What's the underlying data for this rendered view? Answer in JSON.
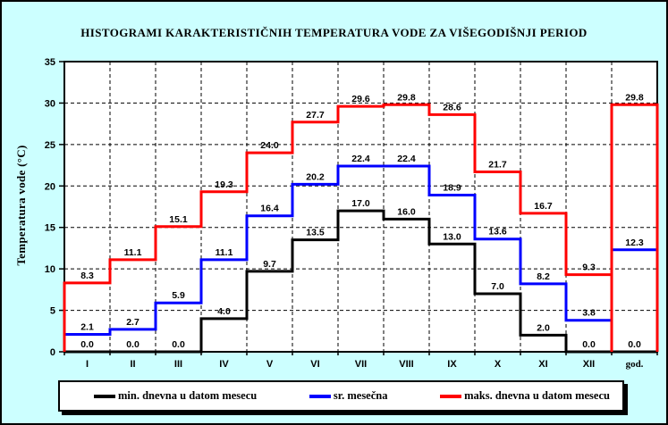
{
  "title": "HISTOGRAMI KARAKTERISTIČNIH TEMPERATURA VODE ZA VIŠEGODIŠNJI PERIOD",
  "colors": {
    "background": "#CCFFFF",
    "plot_background": "#FFFFFF",
    "frame": "#000000",
    "min_series": "#000000",
    "mean_series": "#0000FF",
    "max_series": "#FF0000"
  },
  "chart_data": {
    "type": "line",
    "subtype": "step-histogram",
    "title": "HISTOGRAMI KARAKTERISTIČNIH TEMPERATURA VODE ZA VIŠEGODIŠNJI PERIOD",
    "xlabel": "",
    "ylabel": "Temperatura vode (°C)",
    "categories": [
      "I",
      "II",
      "III",
      "IV",
      "V",
      "VI",
      "VII",
      "VIII",
      "IX",
      "X",
      "XI",
      "XII",
      "god."
    ],
    "series": [
      {
        "name": "min. dnevna u datom mesecu",
        "color": "#000000",
        "values": [
          0.0,
          0.0,
          0.0,
          4.0,
          9.7,
          13.5,
          17.0,
          16.0,
          13.0,
          7.0,
          2.0,
          0.0,
          0.0
        ]
      },
      {
        "name": "sr. mesečna",
        "color": "#0000FF",
        "values": [
          2.1,
          2.7,
          5.9,
          11.1,
          16.4,
          20.2,
          22.4,
          22.4,
          18.9,
          13.6,
          8.2,
          3.8,
          12.3
        ]
      },
      {
        "name": "maks. dnevna u datom mesecu",
        "color": "#FF0000",
        "values": [
          8.3,
          11.1,
          15.1,
          19.3,
          24.0,
          27.7,
          29.6,
          29.8,
          28.6,
          21.7,
          16.7,
          9.3,
          29.8
        ]
      }
    ],
    "ylim": [
      0,
      35
    ],
    "ytick_step": 5,
    "yticks": [
      0,
      5,
      10,
      15,
      20,
      25,
      30,
      35
    ],
    "grid": "dashed",
    "legend_position": "bottom",
    "value_labels": "one-decimal, shown above each step"
  }
}
